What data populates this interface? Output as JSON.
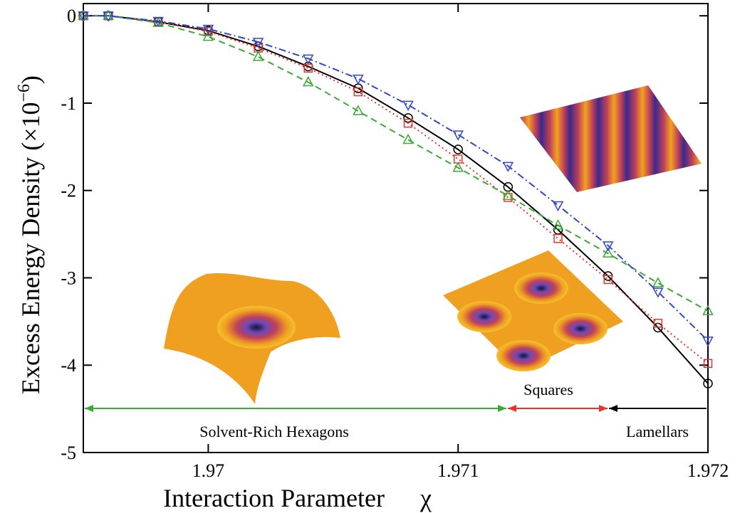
{
  "chart_data": {
    "type": "line",
    "xlabel": "Interaction Parameter",
    "xlabel_symbol": "χ",
    "ylabel": {
      "text": "Excess Energy Density (×10",
      "sup": "−6",
      "close": ")"
    },
    "x": [
      1.9695,
      1.9696,
      1.9698,
      1.97,
      1.9702,
      1.9704,
      1.9706,
      1.9708,
      1.971,
      1.9712,
      1.9714,
      1.9716,
      1.9718,
      1.972
    ],
    "series": [
      {
        "color": "#000000",
        "marker": "circle",
        "dash": "",
        "values": [
          0,
          0,
          -0.07,
          -0.17,
          -0.35,
          -0.58,
          -0.83,
          -1.17,
          -1.53,
          -1.96,
          -2.45,
          -2.98,
          -3.57,
          -4.21
        ]
      },
      {
        "color": "#e8342a",
        "marker": "square",
        "dash": "2 4",
        "values": [
          0,
          0,
          -0.07,
          -0.18,
          -0.37,
          -0.6,
          -0.87,
          -1.23,
          -1.64,
          -2.08,
          -2.55,
          -3.02,
          -3.52,
          -3.98
        ]
      },
      {
        "color": "#3aa935",
        "marker": "triangle-up",
        "dash": "9 6",
        "values": [
          0,
          0,
          -0.08,
          -0.24,
          -0.47,
          -0.76,
          -1.09,
          -1.42,
          -1.74,
          -2.06,
          -2.4,
          -2.72,
          -3.06,
          -3.38
        ]
      },
      {
        "color": "#3146c8",
        "marker": "triangle-down",
        "dash": "10 4 2 4",
        "values": [
          0,
          0,
          -0.06,
          -0.15,
          -0.3,
          -0.49,
          -0.72,
          -1.02,
          -1.36,
          -1.72,
          -2.17,
          -2.63,
          -3.16,
          -3.72
        ]
      }
    ],
    "xlim": [
      1.9695,
      1.972
    ],
    "xticks": [
      1.97,
      1.971,
      1.972
    ],
    "ylim": [
      -5,
      0.14
    ],
    "yticks": [
      -5,
      -4,
      -3,
      -2,
      -1,
      0
    ],
    "annotations": [
      "Solvent-Rich Hexagons",
      "Squares",
      "Lamellars"
    ]
  }
}
